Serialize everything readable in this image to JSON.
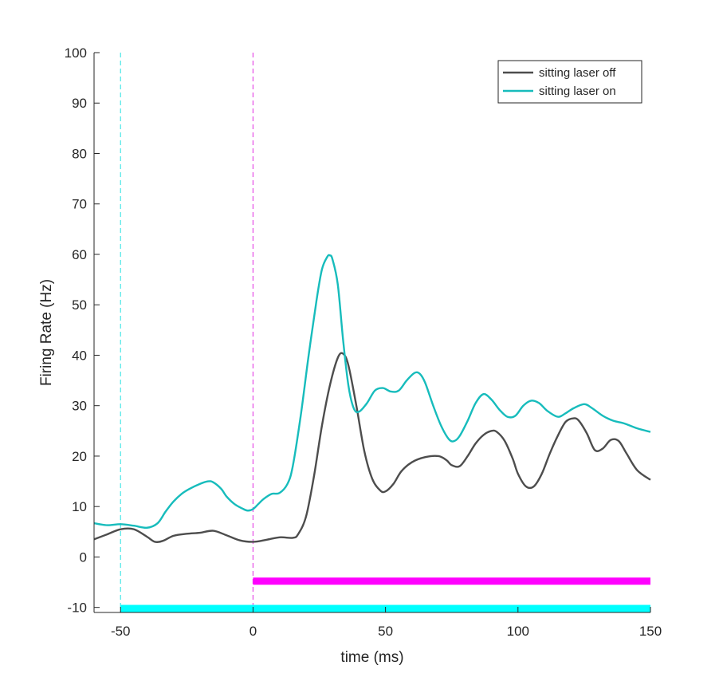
{
  "chart_data": {
    "type": "line",
    "xlabel": "time (ms)",
    "ylabel": "Firing Rate (Hz)",
    "xlim": [
      -60,
      150
    ],
    "ylim": [
      -11,
      100
    ],
    "xticks": [
      -50,
      0,
      50,
      100,
      150
    ],
    "yticks": [
      -10,
      0,
      10,
      20,
      30,
      40,
      50,
      60,
      70,
      80,
      90,
      100
    ],
    "xtick_labels": [
      "-50",
      "0",
      "50",
      "100",
      "150"
    ],
    "ytick_labels": [
      "-10",
      "0",
      "10",
      "20",
      "30",
      "40",
      "50",
      "60",
      "70",
      "80",
      "90",
      "100"
    ],
    "grid": false,
    "box": "left-bottom",
    "legend": {
      "position": "top-right",
      "entries": [
        "sitting laser off",
        "sitting laser on"
      ]
    },
    "series": [
      {
        "name": "sitting laser off",
        "color": "#4d4d4d",
        "x": [
          -60,
          -55,
          -50,
          -45,
          -40,
          -37,
          -34,
          -30,
          -25,
          -20,
          -15,
          -10,
          -5,
          0,
          5,
          10,
          15,
          17,
          20,
          23,
          26,
          29,
          32,
          34,
          36,
          39,
          42,
          45,
          48,
          50,
          53,
          56,
          60,
          65,
          70,
          73,
          75,
          78,
          81,
          84,
          87,
          90,
          92,
          95,
          98,
          100,
          103,
          106,
          109,
          112,
          115,
          118,
          121,
          123,
          126,
          129,
          132,
          135,
          138,
          141,
          145,
          150
        ],
        "y": [
          3.5,
          4.5,
          5.5,
          5.5,
          4,
          3,
          3.2,
          4.2,
          4.6,
          4.8,
          5.2,
          4.3,
          3.3,
          3,
          3.4,
          3.9,
          3.8,
          4.5,
          8,
          16,
          26,
          34,
          39.5,
          40.3,
          38,
          30,
          21,
          15.5,
          13.2,
          13,
          14.5,
          17,
          18.8,
          19.8,
          20,
          19.2,
          18.2,
          18,
          20,
          22.5,
          24.2,
          25,
          24.8,
          23,
          19.5,
          16.5,
          14,
          14,
          16.5,
          20.5,
          24,
          26.8,
          27.5,
          27,
          24.5,
          21.2,
          21.5,
          23.2,
          23,
          20.5,
          17.2,
          15.3
        ]
      },
      {
        "name": "sitting laser on",
        "color": "#17bcbc",
        "x": [
          -60,
          -55,
          -50,
          -45,
          -40,
          -36,
          -33,
          -30,
          -27,
          -24,
          -20,
          -17,
          -15,
          -12,
          -10,
          -7,
          -4,
          -2,
          0,
          2,
          4,
          7,
          10,
          13,
          15,
          18,
          21,
          24,
          26,
          28,
          29,
          30,
          32,
          34,
          36,
          38,
          40,
          43,
          46,
          49,
          52,
          55,
          58,
          61,
          63,
          65,
          68,
          71,
          74,
          76,
          78,
          81,
          84,
          87,
          90,
          93,
          96,
          99,
          102,
          105,
          108,
          111,
          115,
          118,
          121,
          125,
          128,
          132,
          136,
          140,
          145,
          150
        ],
        "y": [
          6.7,
          6.3,
          6.5,
          6.2,
          5.8,
          6.7,
          9,
          11,
          12.5,
          13.5,
          14.5,
          15,
          14.8,
          13.5,
          12,
          10.5,
          9.6,
          9.2,
          9.5,
          10.5,
          11.5,
          12.5,
          12.7,
          14.5,
          18,
          28,
          40,
          51,
          57,
          59.5,
          59.8,
          59,
          54,
          43,
          34,
          29.5,
          28.8,
          30.5,
          33,
          33.5,
          32.8,
          33,
          35,
          36.5,
          36.3,
          34.5,
          30,
          26,
          23.3,
          23,
          24,
          27,
          30.5,
          32.3,
          31.2,
          29.2,
          27.8,
          28,
          30,
          31,
          30.5,
          29,
          27.8,
          28.5,
          29.5,
          30.3,
          29.5,
          28,
          27,
          26.5,
          25.5,
          24.8
        ]
      }
    ],
    "markers": [
      {
        "type": "vline",
        "x": -50,
        "color": "#49e6e6",
        "style": "dashed"
      },
      {
        "type": "vline",
        "x": 0,
        "color": "#e64ae6",
        "style": "dashed"
      },
      {
        "type": "bar",
        "x_start": 0,
        "x_end": 150,
        "y": -4.8,
        "color": "#ff00ff"
      },
      {
        "type": "bar",
        "x_start": -50,
        "x_end": 150,
        "y": -10.2,
        "color": "#00ffff"
      }
    ]
  }
}
